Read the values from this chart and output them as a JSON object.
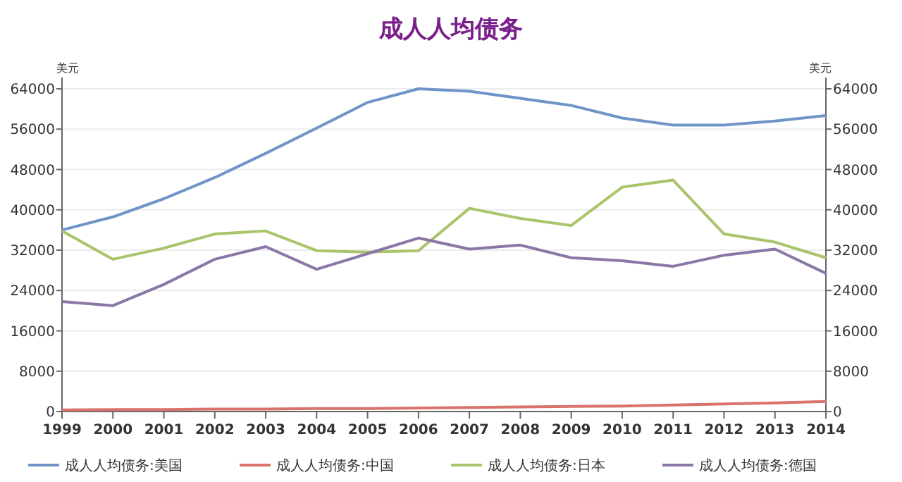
{
  "chart_data": {
    "type": "line",
    "title": "成人人均债务",
    "ylabel": "美元",
    "y2label": "美元",
    "x": [
      1999,
      2000,
      2001,
      2002,
      2003,
      2004,
      2005,
      2006,
      2007,
      2008,
      2009,
      2010,
      2011,
      2012,
      2013,
      2014
    ],
    "xlim": [
      1999,
      2014
    ],
    "xticks": [
      1999,
      2000,
      2001,
      2002,
      2003,
      2004,
      2005,
      2006,
      2007,
      2008,
      2009,
      2010,
      2011,
      2012,
      2013,
      2014
    ],
    "ylim": [
      0,
      64000
    ],
    "yticks": [
      0,
      8000,
      16000,
      24000,
      32000,
      40000,
      48000,
      56000,
      64000
    ],
    "y2lim": [
      0,
      64000
    ],
    "y2ticks": [
      0,
      8000,
      16000,
      24000,
      32000,
      40000,
      48000,
      56000,
      64000
    ],
    "grid": "y",
    "legend": "bottom",
    "marker": "none",
    "line_style": "solid",
    "series": [
      {
        "name": "成人人均债务:美国",
        "color": "#6f95c8",
        "values": [
          36000,
          38600,
          42200,
          46400,
          51200,
          56200,
          61300,
          64000,
          63500,
          62100,
          60700,
          58200,
          56800,
          56800,
          57600,
          58700
        ]
      },
      {
        "name": "成人人均债务:中国",
        "color": "#d9736a",
        "values": [
          300,
          400,
          400,
          500,
          500,
          600,
          600,
          700,
          800,
          900,
          1000,
          1100,
          1300,
          1500,
          1700,
          2000
        ]
      },
      {
        "name": "成人人均债务:日本",
        "color": "#a9c46b",
        "values": [
          35800,
          30200,
          32400,
          35200,
          35800,
          31900,
          31600,
          31900,
          40300,
          38300,
          36900,
          44500,
          45900,
          35200,
          33600,
          30500
        ]
      },
      {
        "name": "成人人均债务:德国",
        "color": "#8a77a8",
        "values": [
          21800,
          21000,
          25200,
          30200,
          32700,
          28200,
          31300,
          34400,
          32200,
          33000,
          30500,
          29900,
          28800,
          31000,
          32200,
          27400
        ]
      }
    ]
  }
}
